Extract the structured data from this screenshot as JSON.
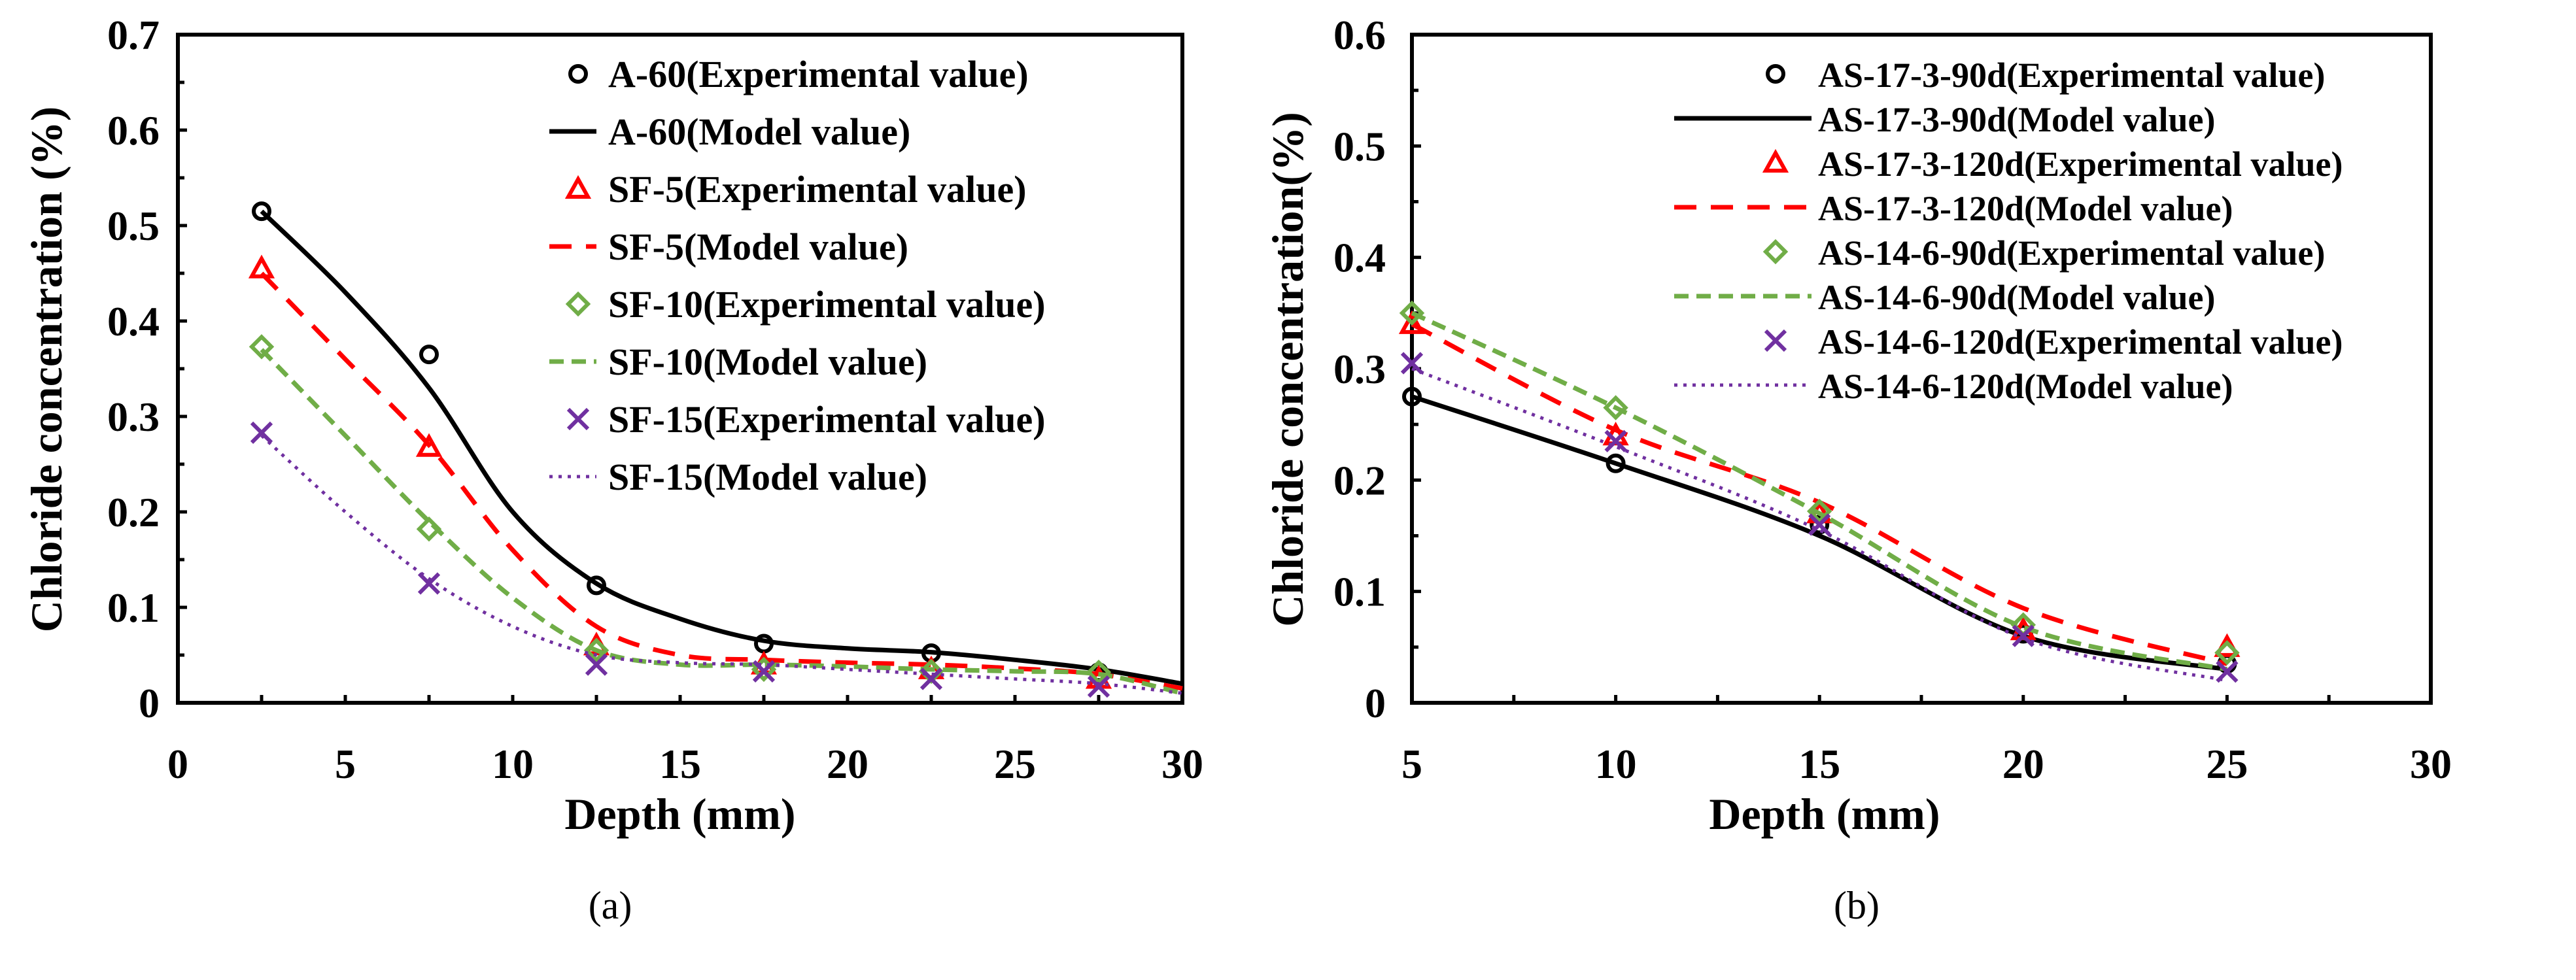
{
  "chart_data": [
    {
      "type": "line",
      "caption": "(a)",
      "xlabel": "Depth (mm)",
      "ylabel": "Chloride concentration (%)",
      "xlim": [
        0,
        30
      ],
      "ylim": [
        0,
        0.7
      ],
      "xticks": [
        "0",
        "5",
        "10",
        "15",
        "20",
        "25",
        "30"
      ],
      "yticks": [
        "0",
        "0.1",
        "0.2",
        "0.3",
        "0.4",
        "0.5",
        "0.6",
        "0.7"
      ],
      "legend_position": "top-right",
      "series": [
        {
          "name": "A-60(Experimental value)",
          "kind": "marker",
          "marker": "circle",
          "color": "#000000",
          "x": [
            2.5,
            7.5,
            12.5,
            17.5,
            22.5,
            27.5
          ],
          "y": [
            0.515,
            0.365,
            0.123,
            0.062,
            0.052,
            0.032
          ]
        },
        {
          "name": "A-60(Model value)",
          "kind": "line",
          "dash": "solid",
          "color": "#000000",
          "x": [
            2.5,
            5,
            7.5,
            10,
            12.5,
            15,
            17.5,
            20,
            22.5,
            25,
            27.5,
            30
          ],
          "y": [
            0.515,
            0.43,
            0.33,
            0.2,
            0.125,
            0.088,
            0.065,
            0.057,
            0.053,
            0.045,
            0.035,
            0.02
          ]
        },
        {
          "name": "SF-5(Experimental value)",
          "kind": "marker",
          "marker": "triangle",
          "color": "#ff0000",
          "x": [
            2.5,
            7.5,
            12.5,
            17.5,
            22.5,
            27.5
          ],
          "y": [
            0.455,
            0.268,
            0.06,
            0.04,
            0.035,
            0.025
          ]
        },
        {
          "name": "SF-5(Model value)",
          "kind": "line",
          "dash": "dashed",
          "color": "#ff0000",
          "x": [
            2.5,
            5,
            7.5,
            10,
            12.5,
            15,
            17.5,
            20,
            22.5,
            25,
            27.5,
            30
          ],
          "y": [
            0.45,
            0.36,
            0.27,
            0.16,
            0.08,
            0.05,
            0.045,
            0.042,
            0.04,
            0.036,
            0.03,
            0.015
          ]
        },
        {
          "name": "SF-10(Experimental value)",
          "kind": "marker",
          "marker": "diamond",
          "color": "#70ad47",
          "x": [
            2.5,
            7.5,
            12.5,
            17.5,
            22.5,
            27.5
          ],
          "y": [
            0.373,
            0.182,
            0.055,
            0.035,
            0.033,
            0.032
          ]
        },
        {
          "name": "SF-10(Model value)",
          "kind": "line",
          "dash": "dashed-short",
          "color": "#70ad47",
          "x": [
            2.5,
            5,
            7.5,
            10,
            12.5,
            15,
            17.5,
            20,
            22.5,
            25,
            27.5,
            30
          ],
          "y": [
            0.37,
            0.28,
            0.19,
            0.11,
            0.055,
            0.04,
            0.04,
            0.038,
            0.035,
            0.033,
            0.03,
            0.01
          ]
        },
        {
          "name": "SF-15(Experimental value)",
          "kind": "marker",
          "marker": "cross",
          "color": "#7030a0",
          "x": [
            2.5,
            7.5,
            12.5,
            17.5,
            22.5,
            27.5
          ],
          "y": [
            0.283,
            0.125,
            0.04,
            0.033,
            0.025,
            0.017
          ]
        },
        {
          "name": "SF-15(Model value)",
          "kind": "line",
          "dash": "dotted",
          "color": "#7030a0",
          "x": [
            2.5,
            5,
            7.5,
            10,
            12.5,
            15,
            17.5,
            20,
            22.5,
            25,
            27.5,
            30
          ],
          "y": [
            0.28,
            0.2,
            0.13,
            0.08,
            0.05,
            0.042,
            0.04,
            0.035,
            0.03,
            0.025,
            0.02,
            0.01
          ]
        }
      ]
    },
    {
      "type": "line",
      "caption": "(b)",
      "xlabel": "Depth (mm)",
      "ylabel": "Chloride concentration(%)",
      "xlim": [
        5,
        30
      ],
      "ylim": [
        0,
        0.6
      ],
      "xticks": [
        "5",
        "10",
        "15",
        "20",
        "25",
        "30"
      ],
      "yticks": [
        "0",
        "0.1",
        "0.2",
        "0.3",
        "0.4",
        "0.5",
        "0.6"
      ],
      "legend_position": "top-right",
      "series": [
        {
          "name": "AS-17-3-90d(Experimental value)",
          "kind": "marker",
          "marker": "circle",
          "color": "#000000",
          "x": [
            5,
            10,
            15,
            20,
            25
          ],
          "y": [
            0.275,
            0.215,
            0.16,
            0.062,
            0.035
          ]
        },
        {
          "name": "AS-17-3-90d(Model value)",
          "kind": "line",
          "dash": "solid",
          "color": "#000000",
          "x": [
            5,
            10,
            15,
            20,
            25
          ],
          "y": [
            0.275,
            0.215,
            0.15,
            0.06,
            0.03
          ]
        },
        {
          "name": "AS-17-3-120d(Experimental value)",
          "kind": "marker",
          "marker": "triangle",
          "color": "#ff0000",
          "x": [
            5,
            10,
            15,
            20,
            25
          ],
          "y": [
            0.34,
            0.24,
            0.17,
            0.065,
            0.05
          ]
        },
        {
          "name": "AS-17-3-120d(Model value)",
          "kind": "line",
          "dash": "dashed",
          "color": "#ff0000",
          "x": [
            5,
            10,
            15,
            20,
            25
          ],
          "y": [
            0.34,
            0.245,
            0.18,
            0.085,
            0.035
          ]
        },
        {
          "name": "AS-14-6-90d(Experimental value)",
          "kind": "marker",
          "marker": "diamond",
          "color": "#70ad47",
          "x": [
            5,
            10,
            15,
            20,
            25
          ],
          "y": [
            0.35,
            0.265,
            0.172,
            0.07,
            0.045
          ]
        },
        {
          "name": "AS-14-6-90d(Model value)",
          "kind": "line",
          "dash": "dashed-short",
          "color": "#70ad47",
          "x": [
            5,
            10,
            15,
            20,
            25
          ],
          "y": [
            0.35,
            0.265,
            0.17,
            0.068,
            0.03
          ]
        },
        {
          "name": "AS-14-6-120d(Experimental value)",
          "kind": "marker",
          "marker": "cross",
          "color": "#7030a0",
          "x": [
            5,
            10,
            15,
            20,
            25
          ],
          "y": [
            0.305,
            0.235,
            0.16,
            0.06,
            0.028
          ]
        },
        {
          "name": "AS-14-6-120d(Model value)",
          "kind": "line",
          "dash": "dotted",
          "color": "#7030a0",
          "x": [
            5,
            10,
            15,
            20,
            25
          ],
          "y": [
            0.3,
            0.23,
            0.155,
            0.058,
            0.02
          ]
        }
      ]
    }
  ]
}
